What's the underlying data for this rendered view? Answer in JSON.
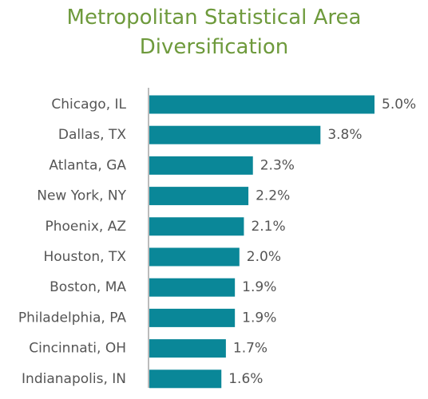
{
  "chart_data": {
    "type": "bar",
    "orientation": "horizontal",
    "title": [
      "Metropolitan Statistical Area",
      "Diversification"
    ],
    "categories": [
      "Chicago, IL",
      "Dallas, TX",
      "Atlanta, GA",
      "New York, NY",
      "Phoenix, AZ",
      "Houston, TX",
      "Boston, MA",
      "Philadelphia, PA",
      "Cincinnati, OH",
      "Indianapolis, IN"
    ],
    "values": [
      5.0,
      3.8,
      2.3,
      2.2,
      2.1,
      2.0,
      1.9,
      1.9,
      1.7,
      1.6
    ],
    "value_labels": [
      "5.0%",
      "3.8%",
      "2.3%",
      "2.2%",
      "2.1%",
      "2.0%",
      "1.9%",
      "1.9%",
      "1.7%",
      "1.6%"
    ],
    "xlim": [
      0,
      5.0
    ],
    "grid": false,
    "legend": "none",
    "colors": {
      "bar": "#0a8798",
      "title": "#6e9a3c",
      "text": "#555555",
      "axis": "#7a7a7a"
    }
  }
}
